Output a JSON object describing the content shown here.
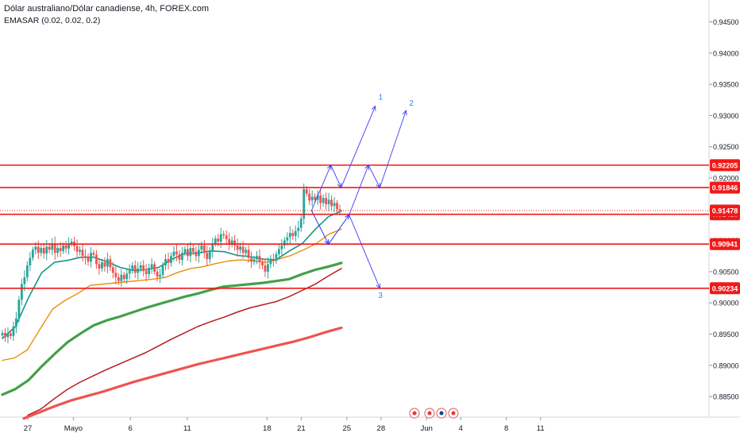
{
  "header": {
    "symbol": "Dólar australiano/Dólar canadiense, 4h, FOREX.com",
    "indicator": "EMASAR (0.02, 0.02, 0.2)"
  },
  "colors": {
    "bull_candle": "#26a69a",
    "bear_candle": "#ef5350",
    "level_line": "#f21818",
    "forecast_line": "#3d3df5",
    "forecast_label": "#2f86f6",
    "ema_fast": "#139983",
    "ema_orange": "#ef8b0d",
    "ema_green": "#43a047",
    "ema_darkred": "#b71c1c",
    "ema_red": "#ef5350",
    "price_tag": "#f21818",
    "text": "#131722",
    "axis_line": "#d1d4dc"
  },
  "chart_data": {
    "type": "candlestick",
    "title": "Dólar australiano/Dólar canadiense, 4h, FOREX.com",
    "ylim": [
      0.8817,
      0.9485
    ],
    "y_ticks": [
      "0.94500",
      "0.94000",
      "0.93500",
      "0.93000",
      "0.92500",
      "0.92000",
      "0.91500",
      "0.91000",
      "0.90500",
      "0.90000",
      "0.89500",
      "0.89000",
      "0.88500"
    ],
    "x_ticks": [
      {
        "label": "27",
        "day": 0
      },
      {
        "label": "Mayo",
        "day": 4
      },
      {
        "label": "6",
        "day": 9
      },
      {
        "label": "11",
        "day": 14
      },
      {
        "label": "18",
        "day": 21
      },
      {
        "label": "21",
        "day": 24
      },
      {
        "label": "25",
        "day": 28
      },
      {
        "label": "28",
        "day": 31
      },
      {
        "label": "Jun",
        "day": 35
      },
      {
        "label": "4",
        "day": 38
      },
      {
        "label": "8",
        "day": 42
      },
      {
        "label": "11",
        "day": 45
      }
    ],
    "price_levels": [
      {
        "label": "0.92205",
        "value": 0.92205
      },
      {
        "label": "0.91846",
        "value": 0.91846
      },
      {
        "label": "0.91418",
        "value": 0.91418
      },
      {
        "label": "0.90941",
        "value": 0.90941
      },
      {
        "label": "0.90234",
        "value": 0.90234
      }
    ],
    "current_price": {
      "label": "0.91478",
      "value": 0.91478
    },
    "closes": [
      0.8952,
      0.8945,
      0.8951,
      0.8947,
      0.8962,
      0.8975,
      0.9005,
      0.903,
      0.9041,
      0.906,
      0.9072,
      0.9085,
      0.909,
      0.908,
      0.9088,
      0.9079,
      0.909,
      0.9085,
      0.9095,
      0.908,
      0.9088,
      0.9083,
      0.9092,
      0.9087,
      0.9095,
      0.9098,
      0.9091,
      0.9082,
      0.9085,
      0.9075,
      0.9072,
      0.9066,
      0.908,
      0.9077,
      0.9062,
      0.9055,
      0.9065,
      0.9058,
      0.907,
      0.9057,
      0.9048,
      0.9041,
      0.9035,
      0.9045,
      0.9038,
      0.9047,
      0.9052,
      0.906,
      0.9048,
      0.9055,
      0.906,
      0.9051,
      0.9046,
      0.9056,
      0.9062,
      0.905,
      0.9042,
      0.9045,
      0.906,
      0.907,
      0.9064,
      0.9075,
      0.9082,
      0.9078,
      0.9069,
      0.908,
      0.9086,
      0.9075,
      0.9088,
      0.9082,
      0.9075,
      0.9085,
      0.9092,
      0.908,
      0.907,
      0.9082,
      0.9095,
      0.9103,
      0.9098,
      0.911,
      0.9108,
      0.9102,
      0.9095,
      0.91,
      0.9092,
      0.9085,
      0.909,
      0.908,
      0.9085,
      0.9072,
      0.9066,
      0.907,
      0.9075,
      0.9065,
      0.906,
      0.905,
      0.9062,
      0.907,
      0.9067,
      0.9078,
      0.9086,
      0.9092,
      0.91,
      0.9105,
      0.9112,
      0.9107,
      0.9115,
      0.912,
      0.9135,
      0.9182,
      0.9175,
      0.9164,
      0.917,
      0.9165,
      0.9172,
      0.916,
      0.9168,
      0.9158,
      0.9165,
      0.9155,
      0.916,
      0.915,
      0.9148
    ],
    "series": [
      {
        "values": [
          0.8943,
          0.8962,
          0.9008,
          0.9048,
          0.9065,
          0.9068,
          0.9073,
          0.9073,
          0.9066,
          0.9057,
          0.9052,
          0.9053,
          0.9057,
          0.907,
          0.9079,
          0.908,
          0.9083,
          0.9082,
          0.9076,
          0.9074,
          0.907,
          0.9069,
          0.9083,
          0.9095,
          0.9118,
          0.9138,
          0.9147
        ]
      },
      {
        "values": [
          0.8908,
          0.8912,
          0.8925,
          0.8958,
          0.899,
          0.9004,
          0.9015,
          0.9028,
          0.903,
          0.9032,
          0.9034,
          0.9036,
          0.9038,
          0.9041,
          0.9049,
          0.9055,
          0.9058,
          0.9063,
          0.9067,
          0.9069,
          0.9067,
          0.9065,
          0.907,
          0.9076,
          0.9085,
          0.9095,
          0.911,
          0.9118
        ]
      },
      {
        "values": [
          0.8853,
          0.8862,
          0.8876,
          0.8898,
          0.8918,
          0.8937,
          0.8951,
          0.8964,
          0.8972,
          0.8978,
          0.8985,
          0.8992,
          0.8998,
          0.9004,
          0.901,
          0.9015,
          0.9021,
          0.9026,
          0.9028,
          0.903,
          0.9032,
          0.9035,
          0.9038,
          0.9046,
          0.9053,
          0.9058,
          0.9064
        ]
      },
      {
        "values": [
          0.882,
          0.883,
          0.8846,
          0.8861,
          0.8873,
          0.8883,
          0.8893,
          0.8902,
          0.8911,
          0.892,
          0.8931,
          0.8942,
          0.8952,
          0.8962,
          0.897,
          0.8977,
          0.8985,
          0.8992,
          0.8997,
          0.9002,
          0.901,
          0.902,
          0.903,
          0.9043,
          0.9055
        ]
      },
      {
        "values": [
          0.8815,
          0.8825,
          0.8835,
          0.8844,
          0.8851,
          0.8858,
          0.8866,
          0.8874,
          0.8881,
          0.8888,
          0.8895,
          0.8902,
          0.8908,
          0.8914,
          0.892,
          0.8926,
          0.8932,
          0.8938,
          0.8945,
          0.8953,
          0.896
        ]
      }
    ],
    "forecast_paths": [
      {
        "label": "1",
        "points": [
          [
            24.9,
            0.9148
          ],
          [
            26.6,
            0.92205
          ],
          [
            27.5,
            0.91846
          ],
          [
            30.5,
            0.9315
          ]
        ]
      },
      {
        "label": "2",
        "points": [
          [
            24.9,
            0.9148
          ],
          [
            26.4,
            0.90941
          ],
          [
            28.2,
            0.9141
          ],
          [
            29.9,
            0.92205
          ],
          [
            30.9,
            0.91846
          ],
          [
            33.2,
            0.9308
          ]
        ]
      },
      {
        "label": "3",
        "points": [
          [
            24.9,
            0.9148
          ],
          [
            26.4,
            0.90941
          ],
          [
            28.2,
            0.9141
          ],
          [
            30.9,
            0.90234
          ]
        ]
      }
    ]
  }
}
